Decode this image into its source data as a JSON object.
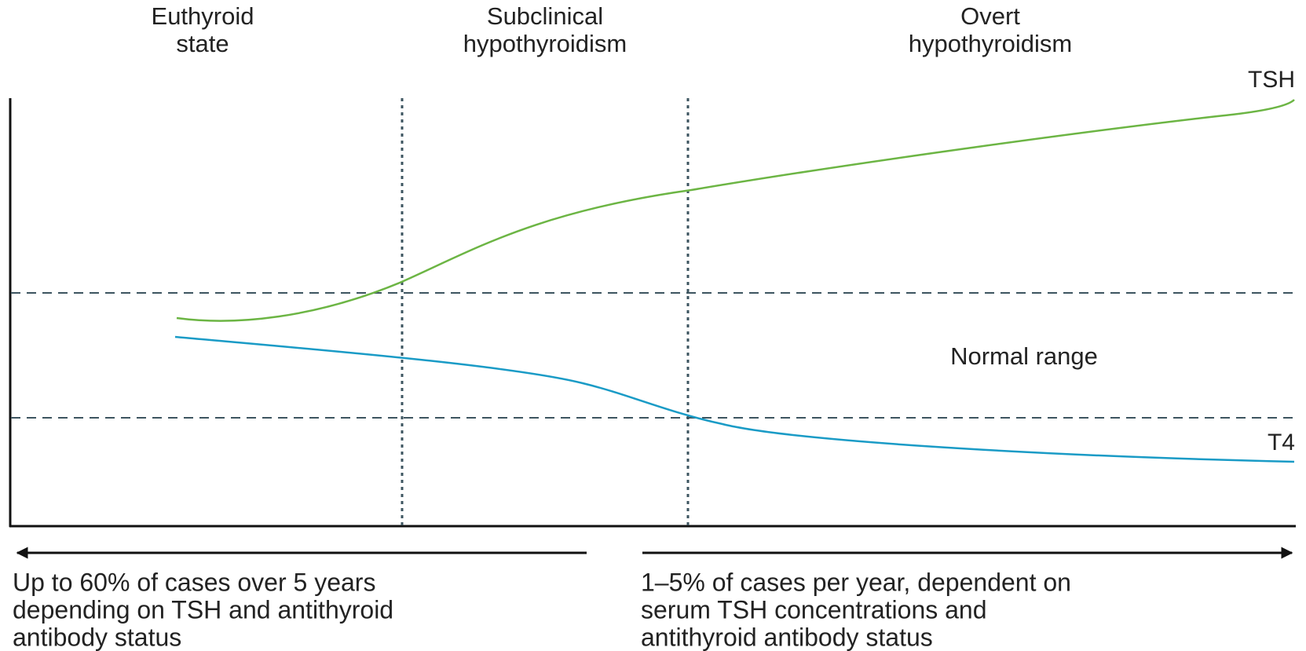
{
  "stages": [
    {
      "lines": [
        "Euthyroid",
        "state"
      ]
    },
    {
      "lines": [
        "Subclinical",
        "hypothyroidism"
      ]
    },
    {
      "lines": [
        "Overt",
        "hypothyroidism"
      ]
    }
  ],
  "curves": {
    "tsh": "TSH",
    "t4": "T4"
  },
  "normal_range": "Normal range",
  "notes": [
    {
      "lines": [
        "Up to 60% of cases over 5 years",
        "depending on TSH and antithyroid",
        "antibody status"
      ]
    },
    {
      "lines": [
        "1–5% of cases per year, dependent on",
        "serum TSH concentrations and",
        "antithyroid antibody status"
      ]
    }
  ]
}
